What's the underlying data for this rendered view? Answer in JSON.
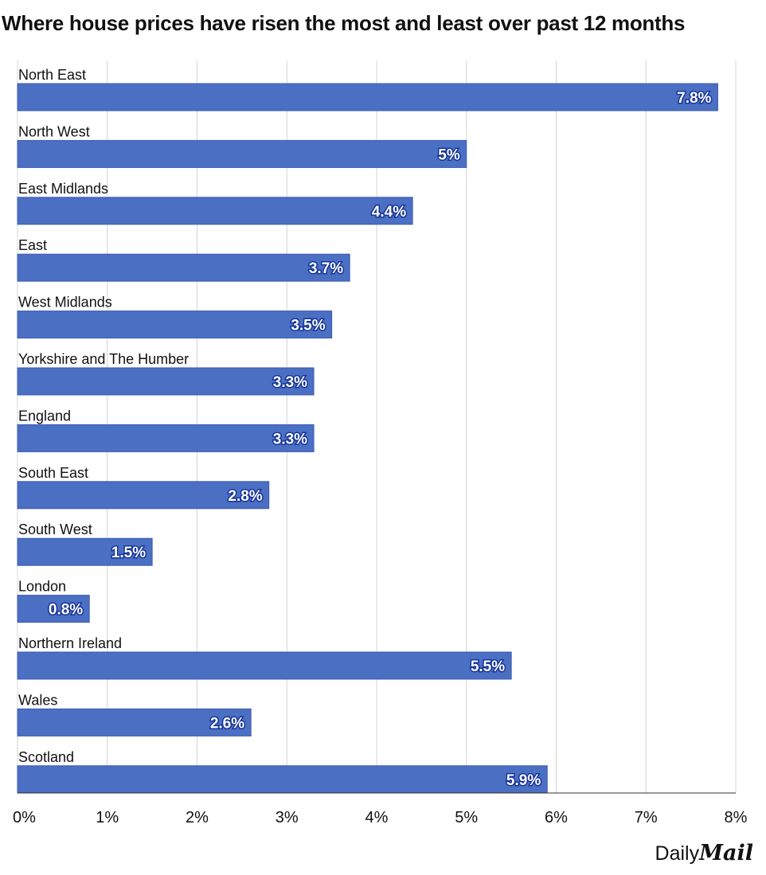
{
  "title": "Where house prices have risen the most and least over past 12 months",
  "brand": {
    "part1": "Daily",
    "part2": "Mail"
  },
  "colors": {
    "bar": "#4a6fc3",
    "bar_edge": "#3a5ab0",
    "grid": "#d4d4d4",
    "label_outline": "#17349a"
  },
  "chart_data": {
    "type": "bar",
    "orientation": "horizontal",
    "title": "Where house prices have risen the most and least over past 12 months",
    "xlabel": "",
    "ylabel": "",
    "xlim": [
      0,
      8
    ],
    "grid": true,
    "ticks": [
      0,
      1,
      2,
      3,
      4,
      5,
      6,
      7,
      8
    ],
    "tick_labels": [
      "0%",
      "1%",
      "2%",
      "3%",
      "4%",
      "5%",
      "6%",
      "7%",
      "8%"
    ],
    "categories": [
      "North East",
      "North West",
      "East Midlands",
      "East",
      "West Midlands",
      "Yorkshire and The Humber",
      "England",
      "South East",
      "South West",
      "London",
      "Northern Ireland",
      "Wales",
      "Scotland"
    ],
    "values": [
      7.8,
      5,
      4.4,
      3.7,
      3.5,
      3.3,
      3.3,
      2.8,
      1.5,
      0.8,
      5.5,
      2.6,
      5.9
    ],
    "value_labels": [
      "7.8%",
      "5%",
      "4.4%",
      "3.7%",
      "3.5%",
      "3.3%",
      "3.3%",
      "2.8%",
      "1.5%",
      "0.8%",
      "5.5%",
      "2.6%",
      "5.9%"
    ]
  }
}
